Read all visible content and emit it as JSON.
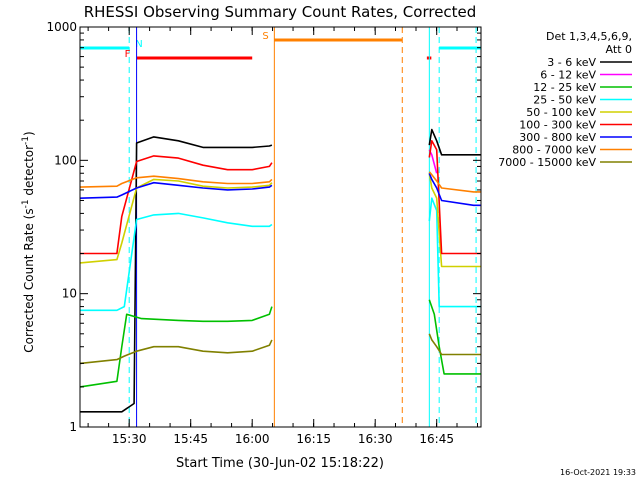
{
  "chart_data": {
    "type": "line",
    "title": "RHESSI Observing Summary Count Rates, Corrected",
    "xlabel": "Start Time (30-Jun-02 15:18:22)",
    "ylabel_main": "Corrected Count Rate (s",
    "ylabel_sup1": "-1",
    "ylabel_mid": " detector",
    "ylabel_sup2": "-1",
    "ylabel_end": ")",
    "y_scale": "log",
    "ylim": [
      1,
      1000
    ],
    "y_ticks": [
      {
        "value": 1,
        "label": "1"
      },
      {
        "value": 10,
        "label": "10"
      },
      {
        "value": 100,
        "label": "100"
      },
      {
        "value": 1000,
        "label": "1000"
      }
    ],
    "x_units": "minutes",
    "xlim": [
      15.3,
      16.93
    ],
    "x_ticks": [
      {
        "value": 15.5,
        "label": "15:30"
      },
      {
        "value": 15.75,
        "label": "15:45"
      },
      {
        "value": 16.0,
        "label": "16:00"
      },
      {
        "value": 16.25,
        "label": "16:15"
      },
      {
        "value": 16.5,
        "label": "16:30"
      },
      {
        "value": 16.75,
        "label": "16:45"
      }
    ],
    "legend": {
      "placement": "right",
      "header1": "Det 1,3,4,5,6,9,",
      "header2": "Att 0"
    },
    "series": [
      {
        "name": "3 - 6 keV",
        "color": "#000000",
        "points": [
          [
            15.3,
            1.3
          ],
          [
            15.47,
            1.3
          ],
          [
            15.52,
            1.5
          ],
          [
            15.53,
            135
          ],
          [
            15.6,
            150
          ],
          [
            15.7,
            140
          ],
          [
            15.8,
            125
          ],
          [
            15.9,
            125
          ],
          [
            16.0,
            125
          ],
          [
            16.07,
            128
          ],
          [
            16.08,
            130
          ],
          [
            16.72,
            130
          ],
          [
            16.73,
            170
          ],
          [
            16.75,
            140
          ],
          [
            16.77,
            110
          ],
          [
            16.9,
            110
          ],
          [
            16.93,
            110
          ]
        ]
      },
      {
        "name": "6 - 12 keV",
        "color": "#ff00ff",
        "points": [
          [
            16.72,
            120
          ],
          [
            16.73,
            110
          ],
          [
            16.75,
            80
          ]
        ]
      },
      {
        "name": "12 - 25 keV",
        "color": "#00c000",
        "points": [
          [
            15.3,
            2.0
          ],
          [
            15.45,
            2.2
          ],
          [
            15.47,
            4
          ],
          [
            15.49,
            7
          ],
          [
            15.55,
            6.5
          ],
          [
            15.7,
            6.3
          ],
          [
            15.8,
            6.2
          ],
          [
            15.9,
            6.2
          ],
          [
            16.0,
            6.3
          ],
          [
            16.05,
            6.8
          ],
          [
            16.07,
            7
          ],
          [
            16.08,
            8
          ],
          [
            16.72,
            9
          ],
          [
            16.74,
            7
          ],
          [
            16.76,
            4
          ],
          [
            16.78,
            2.5
          ],
          [
            16.9,
            2.5
          ],
          [
            16.93,
            2.5
          ]
        ]
      },
      {
        "name": "25 - 50 keV",
        "color": "#00ffff",
        "points": [
          [
            15.3,
            7.5
          ],
          [
            15.45,
            7.5
          ],
          [
            15.48,
            8
          ],
          [
            15.53,
            36
          ],
          [
            15.6,
            39
          ],
          [
            15.7,
            40
          ],
          [
            15.8,
            37
          ],
          [
            15.9,
            34
          ],
          [
            16.0,
            32
          ],
          [
            16.07,
            32
          ],
          [
            16.08,
            33
          ],
          [
            16.72,
            35
          ],
          [
            16.73,
            52
          ],
          [
            16.75,
            42
          ],
          [
            16.76,
            8
          ],
          [
            16.9,
            8
          ],
          [
            16.93,
            8
          ]
        ]
      },
      {
        "name": "50 - 100 keV",
        "color": "#d0d000",
        "points": [
          [
            15.3,
            17
          ],
          [
            15.45,
            18
          ],
          [
            15.47,
            24
          ],
          [
            15.53,
            62
          ],
          [
            15.6,
            72
          ],
          [
            15.7,
            70
          ],
          [
            15.8,
            64
          ],
          [
            15.9,
            62
          ],
          [
            16.0,
            63
          ],
          [
            16.07,
            65
          ],
          [
            16.08,
            68
          ],
          [
            16.72,
            80
          ],
          [
            16.73,
            62
          ],
          [
            16.75,
            52
          ],
          [
            16.77,
            16
          ],
          [
            16.9,
            16
          ],
          [
            16.93,
            16
          ]
        ]
      },
      {
        "name": "100 - 300 keV",
        "color": "#ff0000",
        "points": [
          [
            15.3,
            20
          ],
          [
            15.45,
            20
          ],
          [
            15.47,
            38
          ],
          [
            15.53,
            98
          ],
          [
            15.6,
            108
          ],
          [
            15.7,
            104
          ],
          [
            15.8,
            92
          ],
          [
            15.9,
            85
          ],
          [
            16.0,
            85
          ],
          [
            16.07,
            90
          ],
          [
            16.08,
            96
          ],
          [
            16.72,
            105
          ],
          [
            16.73,
            140
          ],
          [
            16.75,
            120
          ],
          [
            16.77,
            20
          ],
          [
            16.9,
            20
          ],
          [
            16.93,
            20
          ]
        ]
      },
      {
        "name": "300 - 800 keV",
        "color": "#0000ff",
        "points": [
          [
            15.3,
            52
          ],
          [
            15.45,
            53
          ],
          [
            15.47,
            55
          ],
          [
            15.53,
            62
          ],
          [
            15.6,
            68
          ],
          [
            15.7,
            65
          ],
          [
            15.8,
            62
          ],
          [
            15.9,
            60
          ],
          [
            16.0,
            61
          ],
          [
            16.07,
            63
          ],
          [
            16.08,
            65
          ],
          [
            16.72,
            80
          ],
          [
            16.73,
            72
          ],
          [
            16.75,
            62
          ],
          [
            16.77,
            50
          ],
          [
            16.9,
            46
          ],
          [
            16.93,
            46
          ]
        ]
      },
      {
        "name": "800 - 7000 keV",
        "color": "#ff8000",
        "points": [
          [
            15.3,
            63
          ],
          [
            15.45,
            64
          ],
          [
            15.47,
            67
          ],
          [
            15.53,
            74
          ],
          [
            15.6,
            76
          ],
          [
            15.7,
            73
          ],
          [
            15.8,
            69
          ],
          [
            15.9,
            67
          ],
          [
            16.0,
            67
          ],
          [
            16.07,
            69
          ],
          [
            16.08,
            72
          ],
          [
            16.72,
            82
          ],
          [
            16.73,
            78
          ],
          [
            16.75,
            70
          ],
          [
            16.77,
            62
          ],
          [
            16.9,
            58
          ],
          [
            16.93,
            58
          ]
        ]
      },
      {
        "name": "7000 - 15000 keV",
        "color": "#808000",
        "points": [
          [
            15.3,
            3.0
          ],
          [
            15.45,
            3.2
          ],
          [
            15.48,
            3.4
          ],
          [
            15.53,
            3.7
          ],
          [
            15.6,
            4
          ],
          [
            15.7,
            4
          ],
          [
            15.8,
            3.7
          ],
          [
            15.9,
            3.6
          ],
          [
            16.0,
            3.7
          ],
          [
            16.07,
            4.1
          ],
          [
            16.08,
            4.5
          ],
          [
            16.72,
            5
          ],
          [
            16.73,
            4.5
          ],
          [
            16.75,
            4
          ],
          [
            16.77,
            3.5
          ],
          [
            16.9,
            3.5
          ],
          [
            16.93,
            3.5
          ]
        ]
      }
    ],
    "flags": [
      {
        "label": "N",
        "color": "#00ffff",
        "x_start": 15.3,
        "x_end": 15.5,
        "x_end2": 16.76,
        "x_end3": 16.93
      },
      {
        "label": "F",
        "color": "#ff0000",
        "x_start": 15.53,
        "x_end": 16.0,
        "x_start2": 16.71,
        "x_end2": 16.72
      },
      {
        "label": "S",
        "color": "#ff8000",
        "x_start": 16.09,
        "x_end": 16.61
      }
    ],
    "timestamp": "16-Oct-2021 19:33"
  }
}
